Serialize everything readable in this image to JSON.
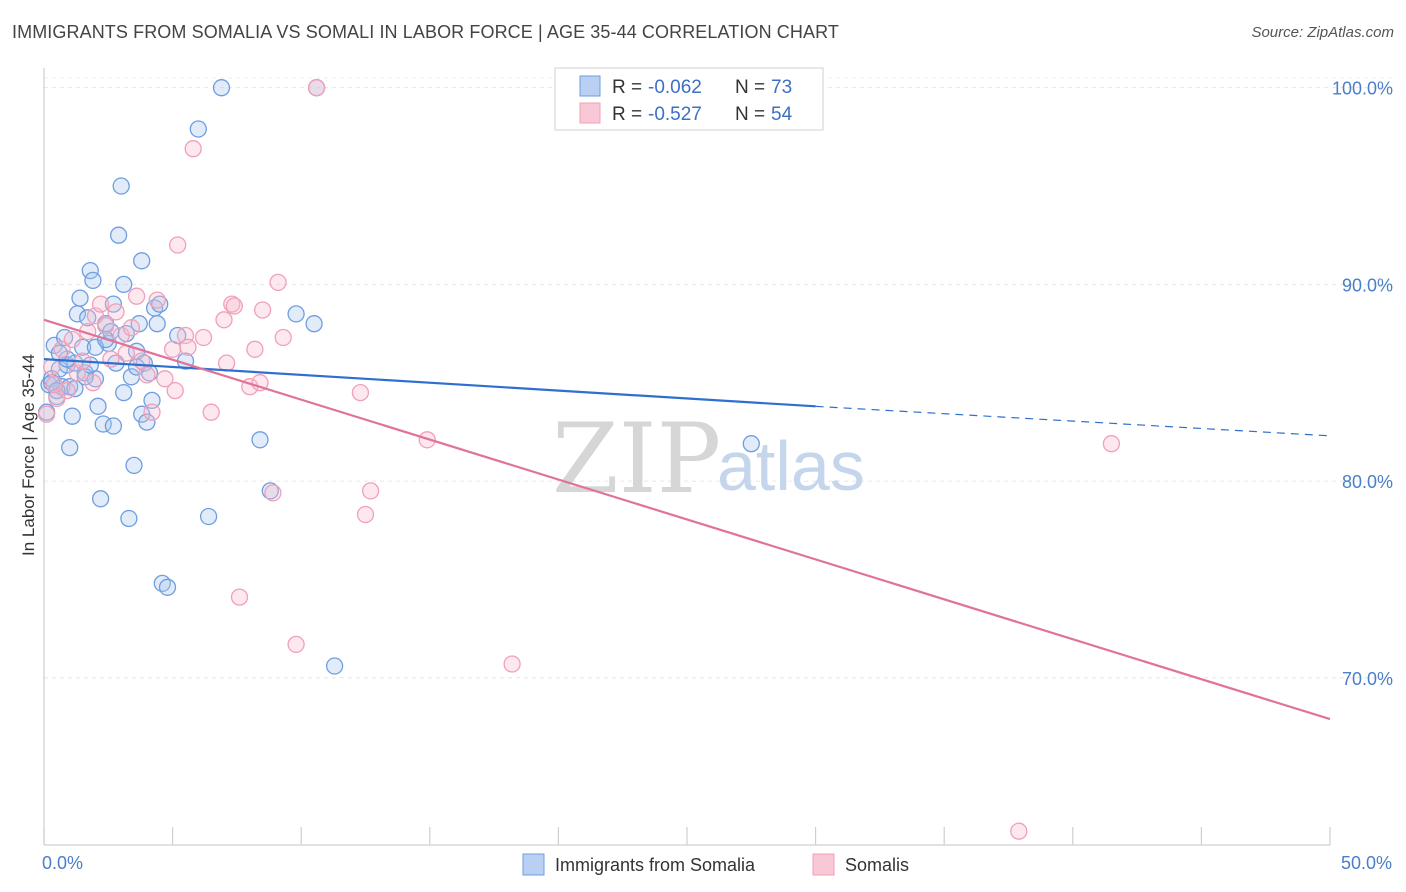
{
  "header": {
    "title": "IMMIGRANTS FROM SOMALIA VS SOMALI IN LABOR FORCE | AGE 35-44 CORRELATION CHART",
    "source": "Source: ZipAtlas.com"
  },
  "watermark": {
    "zip": "ZIP",
    "atlas": "atlas"
  },
  "legend": {
    "rows": [
      {
        "r_label": "R =",
        "r_value": "-0.062",
        "n_label": "N =",
        "n_value": "73"
      },
      {
        "r_label": "R =",
        "r_value": "-0.527",
        "n_label": "N =",
        "n_value": "54"
      }
    ]
  },
  "bottom_legend": {
    "items": [
      {
        "label": "Immigrants from Somalia"
      },
      {
        "label": "Somalis"
      }
    ]
  },
  "chart_data": {
    "type": "scatter",
    "title": "IMMIGRANTS FROM SOMALIA VS SOMALI IN LABOR FORCE | AGE 35-44 CORRELATION CHART",
    "xlabel": "",
    "ylabel": "In Labor Force | Age 35-44",
    "xlim": [
      0,
      50
    ],
    "ylim": [
      61.5,
      101
    ],
    "x_tick_labels": [
      "0.0%",
      "50.0%"
    ],
    "y_ticks": [
      70,
      80,
      90,
      100
    ],
    "y_tick_labels": [
      "70.0%",
      "80.0%",
      "90.0%",
      "100.0%"
    ],
    "grid": true,
    "legend_position": "top-center",
    "colors": {
      "blue": "#6f9ee0",
      "blue_line": "#2f6fcf",
      "pink": "#f0a0b8",
      "pink_line": "#e0739a"
    },
    "series": [
      {
        "name": "Immigrants from Somalia",
        "color": "#6f9ee0",
        "r": -0.062,
        "n": 73,
        "trend": {
          "x0": 0,
          "y0": 86.2,
          "x1": 30,
          "y1": 83.8,
          "dash_to_x": 50,
          "dash_y": 82.3
        },
        "points": [
          [
            0.2,
            84.9
          ],
          [
            0.3,
            85.2
          ],
          [
            0.4,
            86.9
          ],
          [
            0.5,
            84.3
          ],
          [
            0.6,
            85.7
          ],
          [
            0.7,
            84.8
          ],
          [
            0.8,
            87.3
          ],
          [
            0.9,
            85.9
          ],
          [
            1.0,
            84.8
          ],
          [
            1.1,
            83.3
          ],
          [
            1.0,
            81.7
          ],
          [
            1.2,
            86.0
          ],
          [
            1.3,
            88.5
          ],
          [
            1.4,
            89.3
          ],
          [
            1.5,
            86.8
          ],
          [
            1.6,
            85.5
          ],
          [
            1.7,
            88.3
          ],
          [
            1.8,
            90.7
          ],
          [
            1.9,
            90.2
          ],
          [
            2.0,
            85.2
          ],
          [
            2.1,
            83.8
          ],
          [
            2.2,
            79.1
          ],
          [
            2.3,
            82.9
          ],
          [
            2.4,
            88.0
          ],
          [
            2.5,
            87.0
          ],
          [
            2.6,
            87.6
          ],
          [
            2.7,
            82.8
          ],
          [
            2.8,
            86.0
          ],
          [
            2.9,
            92.5
          ],
          [
            3.0,
            95.0
          ],
          [
            3.1,
            90.0
          ],
          [
            3.2,
            87.5
          ],
          [
            3.3,
            78.1
          ],
          [
            3.4,
            85.3
          ],
          [
            3.5,
            80.8
          ],
          [
            3.6,
            86.6
          ],
          [
            3.7,
            88.0
          ],
          [
            3.8,
            83.4
          ],
          [
            3.8,
            91.2
          ],
          [
            3.9,
            86.0
          ],
          [
            4.0,
            83.0
          ],
          [
            4.1,
            85.5
          ],
          [
            4.2,
            84.1
          ],
          [
            4.3,
            88.8
          ],
          [
            4.4,
            88.0
          ],
          [
            4.5,
            89.0
          ],
          [
            4.6,
            74.8
          ],
          [
            4.8,
            74.6
          ],
          [
            5.2,
            87.4
          ],
          [
            5.5,
            86.1
          ],
          [
            6.0,
            97.9
          ],
          [
            6.4,
            78.2
          ],
          [
            6.9,
            100.0
          ],
          [
            8.4,
            82.1
          ],
          [
            8.8,
            79.5
          ],
          [
            9.8,
            88.5
          ],
          [
            10.5,
            88.0
          ],
          [
            10.6,
            100.0
          ],
          [
            11.3,
            70.6
          ],
          [
            27.5,
            81.9
          ],
          [
            0.1,
            83.5
          ],
          [
            0.3,
            85.0
          ],
          [
            0.5,
            84.6
          ],
          [
            0.9,
            86.2
          ],
          [
            1.6,
            85.3
          ],
          [
            2.0,
            86.8
          ],
          [
            2.4,
            87.2
          ],
          [
            2.7,
            89.0
          ],
          [
            3.1,
            84.5
          ],
          [
            3.6,
            85.8
          ],
          [
            1.2,
            84.7
          ],
          [
            1.8,
            85.9
          ],
          [
            0.6,
            86.5
          ]
        ]
      },
      {
        "name": "Somalis",
        "color": "#f0a0b8",
        "r": -0.527,
        "n": 54,
        "trend": {
          "x0": 0,
          "y0": 88.2,
          "x1": 50,
          "y1": 67.9
        },
        "points": [
          [
            0.1,
            83.4
          ],
          [
            0.3,
            85.8
          ],
          [
            0.5,
            84.2
          ],
          [
            0.7,
            86.7
          ],
          [
            0.9,
            84.6
          ],
          [
            1.1,
            87.2
          ],
          [
            1.3,
            85.5
          ],
          [
            1.5,
            86.1
          ],
          [
            1.7,
            87.6
          ],
          [
            1.9,
            85.0
          ],
          [
            2.0,
            88.4
          ],
          [
            2.2,
            89.0
          ],
          [
            2.4,
            87.9
          ],
          [
            2.6,
            86.2
          ],
          [
            2.8,
            88.6
          ],
          [
            3.0,
            87.4
          ],
          [
            3.2,
            86.5
          ],
          [
            3.4,
            87.8
          ],
          [
            3.6,
            89.4
          ],
          [
            3.8,
            86.1
          ],
          [
            4.0,
            85.4
          ],
          [
            4.2,
            83.5
          ],
          [
            4.4,
            89.2
          ],
          [
            4.7,
            85.2
          ],
          [
            5.0,
            86.7
          ],
          [
            5.1,
            84.6
          ],
          [
            5.2,
            92.0
          ],
          [
            5.5,
            87.4
          ],
          [
            5.6,
            86.8
          ],
          [
            5.8,
            96.9
          ],
          [
            6.2,
            87.3
          ],
          [
            6.5,
            83.5
          ],
          [
            7.0,
            88.2
          ],
          [
            7.1,
            86.0
          ],
          [
            7.3,
            89.0
          ],
          [
            7.4,
            88.9
          ],
          [
            7.6,
            74.1
          ],
          [
            8.0,
            84.8
          ],
          [
            8.2,
            86.7
          ],
          [
            8.4,
            85.0
          ],
          [
            8.5,
            88.7
          ],
          [
            8.9,
            79.4
          ],
          [
            9.1,
            90.1
          ],
          [
            9.3,
            87.3
          ],
          [
            9.8,
            71.7
          ],
          [
            10.6,
            100.0
          ],
          [
            12.3,
            84.5
          ],
          [
            12.5,
            78.3
          ],
          [
            12.7,
            79.5
          ],
          [
            14.9,
            82.1
          ],
          [
            18.2,
            70.7
          ],
          [
            37.9,
            62.2
          ],
          [
            41.5,
            81.9
          ],
          [
            0.4,
            84.9
          ]
        ]
      }
    ]
  }
}
